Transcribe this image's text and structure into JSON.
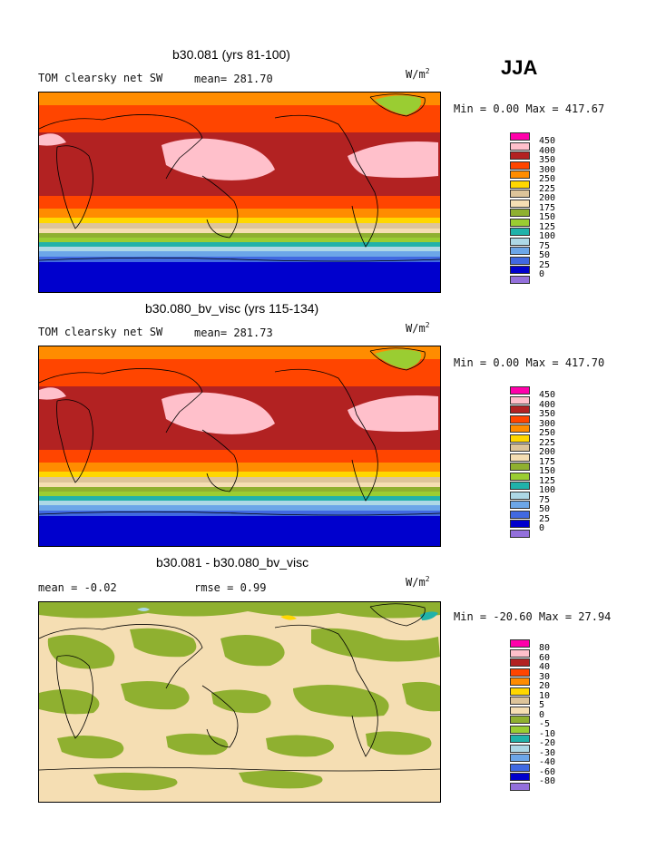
{
  "season": "JJA",
  "colors": [
    "#ff00aa",
    "#ffc0cb",
    "#b22222",
    "#ff4500",
    "#ff8c00",
    "#ffd700",
    "#ddc49a",
    "#f5deb3",
    "#8fb030",
    "#9acd32",
    "#20b2aa",
    "#add8e6",
    "#6ca6e8",
    "#4169e1",
    "#0000cd",
    "#9370db"
  ],
  "panels": [
    {
      "title": "b30.081 (yrs 81-100)",
      "left_text": "TOM clearsky net SW",
      "mid_text": "mean= 281.70",
      "units_base": "W/m",
      "units_exp": "2",
      "minmax_text": "Min =   0.00 Max = 417.67",
      "levels": [
        "450",
        "400",
        "350",
        "300",
        "250",
        "225",
        "200",
        "175",
        "150",
        "125",
        "100",
        "75",
        "50",
        "25",
        "0"
      ]
    },
    {
      "title": "b30.080_bv_visc (yrs 115-134)",
      "left_text": "TOM clearsky net SW",
      "mid_text": "mean= 281.73",
      "units_base": "W/m",
      "units_exp": "2",
      "minmax_text": "Min =   0.00 Max = 417.70",
      "levels": [
        "450",
        "400",
        "350",
        "300",
        "250",
        "225",
        "200",
        "175",
        "150",
        "125",
        "100",
        "75",
        "50",
        "25",
        "0"
      ]
    },
    {
      "title": "b30.081 - b30.080_bv_visc",
      "left_text": "mean =  -0.02",
      "mid_text": "rmse =    0.99",
      "units_base": "W/m",
      "units_exp": "2",
      "minmax_text": "Min = -20.60 Max =  27.94",
      "levels": [
        "80",
        "60",
        "40",
        "30",
        "20",
        "10",
        "5",
        "0",
        "-5",
        "-10",
        "-20",
        "-30",
        "-40",
        "-60",
        "-80"
      ]
    }
  ],
  "chart_data": [
    {
      "type": "heatmap",
      "title": "b30.081 (yrs 81-100)",
      "subtitle": "TOM clearsky net SW",
      "mean": 281.7,
      "min": 0.0,
      "max": 417.67,
      "units": "W/m2",
      "contour_levels": [
        0,
        25,
        50,
        75,
        100,
        125,
        150,
        175,
        200,
        225,
        250,
        300,
        350,
        400,
        450
      ]
    },
    {
      "type": "heatmap",
      "title": "b30.080_bv_visc (yrs 115-134)",
      "subtitle": "TOM clearsky net SW",
      "mean": 281.73,
      "min": 0.0,
      "max": 417.7,
      "units": "W/m2",
      "contour_levels": [
        0,
        25,
        50,
        75,
        100,
        125,
        150,
        175,
        200,
        225,
        250,
        300,
        350,
        400,
        450
      ]
    },
    {
      "type": "heatmap",
      "title": "b30.081 - b30.080_bv_visc",
      "mean": -0.02,
      "rmse": 0.99,
      "min": -20.6,
      "max": 27.94,
      "units": "W/m2",
      "contour_levels": [
        -80,
        -60,
        -40,
        -30,
        -20,
        -10,
        -5,
        0,
        5,
        10,
        20,
        30,
        40,
        60,
        80
      ]
    }
  ]
}
